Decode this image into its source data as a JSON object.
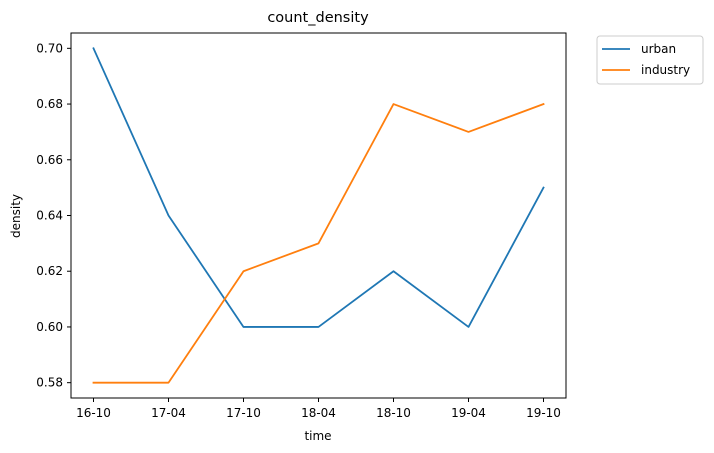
{
  "chart_data": {
    "type": "line",
    "title": "count_density",
    "xlabel": "time",
    "ylabel": "density",
    "categories": [
      "16-10",
      "17-04",
      "17-10",
      "18-04",
      "18-10",
      "19-04",
      "19-10"
    ],
    "yticks": [
      "0.58",
      "0.60",
      "0.62",
      "0.64",
      "0.66",
      "0.68",
      "0.70"
    ],
    "ylim": [
      0.5745,
      0.7055
    ],
    "grid": false,
    "legend_position": "outside-top-right",
    "series": [
      {
        "name": "urban",
        "color": "#1f77b4",
        "values": [
          0.7,
          0.64,
          0.6,
          0.6,
          0.62,
          0.6,
          0.65
        ]
      },
      {
        "name": "industry",
        "color": "#ff7f0e",
        "values": [
          0.58,
          0.58,
          0.62,
          0.63,
          0.68,
          0.67,
          0.68
        ]
      }
    ]
  }
}
